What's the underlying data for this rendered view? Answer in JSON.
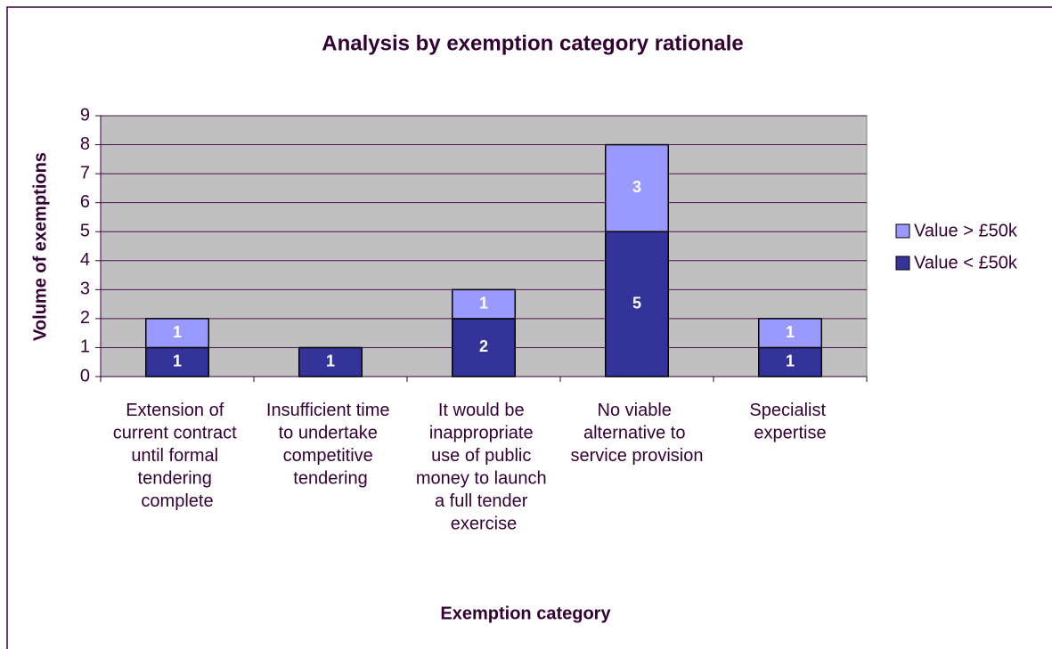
{
  "chart_data": {
    "type": "stacked_bar",
    "title": "Analysis by exemption category rationale",
    "xlabel": "Exemption category",
    "ylabel": "Volume of exemptions",
    "categories": [
      "Extension of current contract until formal tendering complete",
      "Insufficient time to undertake competitive tendering",
      "It would be inappropriate use of public money to launch a full tender exercise",
      "No viable alternative to service provision",
      "Specialist expertise"
    ],
    "series": [
      {
        "name": "Value < £50k",
        "color": "#333399",
        "values": [
          1,
          1,
          2,
          5,
          1
        ]
      },
      {
        "name": "Value > £50k",
        "color": "#9999ff",
        "values": [
          1,
          0,
          1,
          3,
          1
        ]
      }
    ],
    "ylim": [
      0,
      9
    ],
    "yticks": [
      0,
      1,
      2,
      3,
      4,
      5,
      6,
      7,
      8,
      9
    ],
    "grid": true,
    "legend": "right"
  }
}
